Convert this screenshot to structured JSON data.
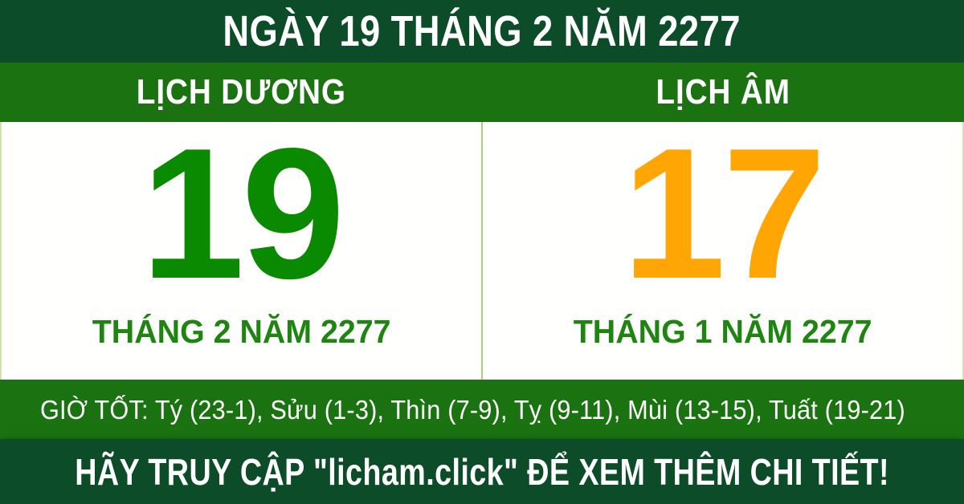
{
  "colors": {
    "dark_green": "#0c4c28",
    "green": "#1a7310",
    "number_green": "#0a8a00",
    "label_green": "#1e8511",
    "orange": "#ffa604",
    "divider": "#a9d37d",
    "card_border": "#cfe3ad",
    "card_bg": "#fffffd",
    "text_white": "#ffffff"
  },
  "header": {
    "title": "NGÀY 19 THÁNG 2 NĂM 2277"
  },
  "calendar": {
    "solar": {
      "label": "LỊCH DƯƠNG",
      "day": "19",
      "month_year": "THÁNG 2 NĂM 2277"
    },
    "lunar": {
      "label": "LỊCH ÂM",
      "day": "17",
      "month_year": "THÁNG 1 NĂM 2277"
    }
  },
  "good_hours": {
    "text": "GIỜ TỐT: Tý (23-1), Sửu (1-3), Thìn (7-9), Tỵ (9-11), Mùi (13-15), Tuất (19-21)"
  },
  "footer": {
    "cta": "HÃY TRUY CẬP \"licham.click\" ĐỂ XEM THÊM CHI TIẾT!"
  }
}
